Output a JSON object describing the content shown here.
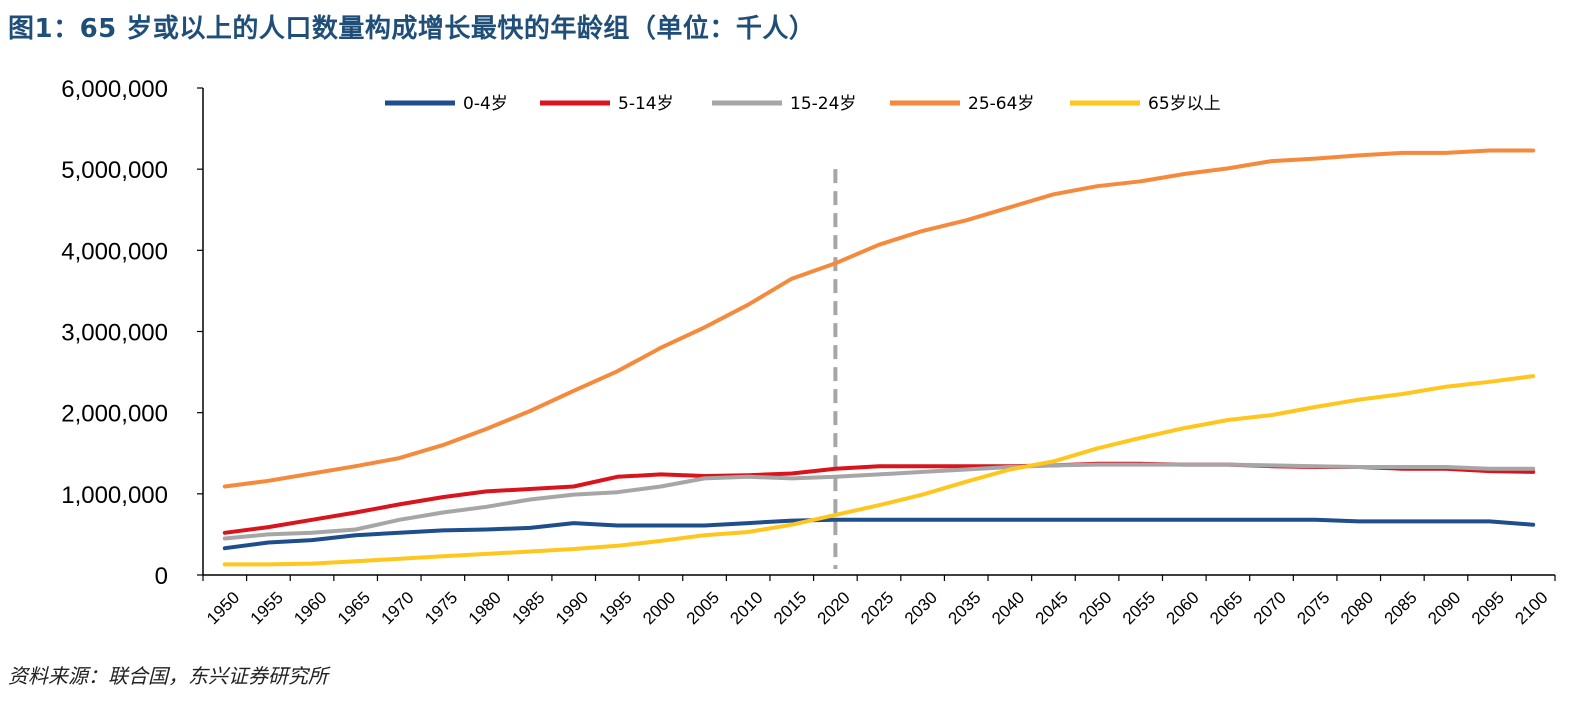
{
  "title": "图1：65 岁或以上的人口数量构成增长最快的年龄组（单位：千人）",
  "source": "资料来源：联合国，东兴证券研究所",
  "chart_data": {
    "type": "line",
    "x": [
      1950,
      1955,
      1960,
      1965,
      1970,
      1975,
      1980,
      1985,
      1990,
      1995,
      2000,
      2005,
      2010,
      2015,
      2020,
      2025,
      2030,
      2035,
      2040,
      2045,
      2050,
      2055,
      2060,
      2065,
      2070,
      2075,
      2080,
      2085,
      2090,
      2095,
      2100
    ],
    "ylim": [
      0,
      6000000
    ],
    "yticks": [
      0,
      1000000,
      2000000,
      3000000,
      4000000,
      5000000,
      6000000
    ],
    "ytick_labels": [
      "0",
      "1,000,000",
      "2,000,000",
      "3,000,000",
      "4,000,000",
      "5,000,000",
      "6,000,000"
    ],
    "reference_line": {
      "x": 2020,
      "color": "#a6a6a6",
      "style": "dashed"
    },
    "legend_position": "top",
    "series": [
      {
        "name": "0-4岁",
        "color": "#1f4e8c",
        "values": [
          330000,
          400000,
          430000,
          490000,
          520000,
          550000,
          560000,
          580000,
          640000,
          610000,
          610000,
          610000,
          640000,
          670000,
          680000,
          680000,
          680000,
          680000,
          680000,
          680000,
          680000,
          680000,
          680000,
          680000,
          680000,
          680000,
          660000,
          660000,
          660000,
          660000,
          620000
        ]
      },
      {
        "name": "5-14岁",
        "color": "#d9141c",
        "values": [
          520000,
          590000,
          680000,
          770000,
          870000,
          960000,
          1030000,
          1060000,
          1090000,
          1210000,
          1240000,
          1220000,
          1230000,
          1250000,
          1310000,
          1340000,
          1340000,
          1340000,
          1340000,
          1350000,
          1370000,
          1370000,
          1360000,
          1360000,
          1340000,
          1330000,
          1330000,
          1310000,
          1310000,
          1280000,
          1270000
        ]
      },
      {
        "name": "15-24岁",
        "color": "#a6a6a6",
        "values": [
          450000,
          500000,
          520000,
          560000,
          680000,
          770000,
          840000,
          930000,
          990000,
          1020000,
          1090000,
          1190000,
          1210000,
          1190000,
          1210000,
          1240000,
          1270000,
          1300000,
          1330000,
          1350000,
          1360000,
          1360000,
          1360000,
          1360000,
          1350000,
          1340000,
          1330000,
          1330000,
          1330000,
          1310000,
          1310000
        ]
      },
      {
        "name": "25-64岁",
        "color": "#f58a3c",
        "values": [
          1090000,
          1160000,
          1250000,
          1340000,
          1440000,
          1600000,
          1800000,
          2020000,
          2270000,
          2510000,
          2800000,
          3050000,
          3330000,
          3650000,
          3840000,
          4070000,
          4240000,
          4370000,
          4530000,
          4690000,
          4790000,
          4850000,
          4940000,
          5010000,
          5100000,
          5130000,
          5170000,
          5200000,
          5200000,
          5230000,
          5230000
        ]
      },
      {
        "name": "65岁以上",
        "color": "#ffc61e",
        "values": [
          130000,
          130000,
          140000,
          170000,
          200000,
          230000,
          260000,
          290000,
          320000,
          360000,
          420000,
          490000,
          530000,
          620000,
          740000,
          860000,
          990000,
          1150000,
          1300000,
          1400000,
          1560000,
          1690000,
          1810000,
          1910000,
          1970000,
          2070000,
          2160000,
          2230000,
          2320000,
          2380000,
          2450000
        ]
      }
    ]
  }
}
